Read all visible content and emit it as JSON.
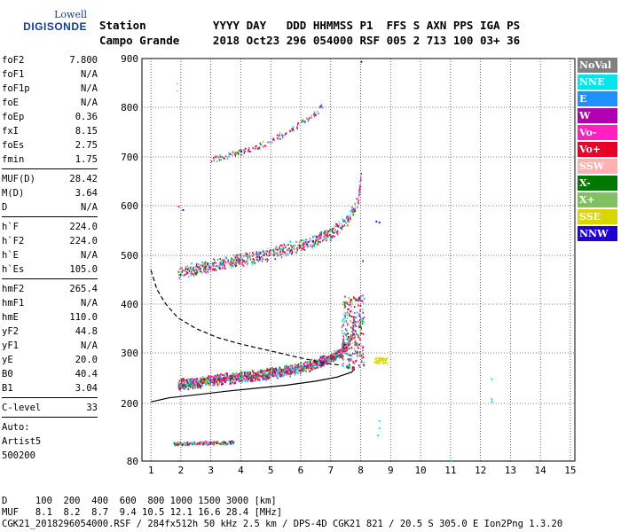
{
  "logo": {
    "line1": "Lowell",
    "line2": "DIGISONDE"
  },
  "header": {
    "row1": "Station          YYYY DAY   DDD HHMMSS P1  FFS S AXN PPS IGA PS",
    "row2": "Campo Grande     2018 Oct23 296 054000 RSF 005 2 713 100 03+ 36"
  },
  "params": {
    "group1": [
      [
        "foF2",
        "7.800"
      ],
      [
        "foF1",
        "N/A"
      ],
      [
        "foF1p",
        "N/A"
      ],
      [
        "foE",
        "N/A"
      ],
      [
        "foEp",
        "0.36"
      ],
      [
        "fxI",
        "8.15"
      ],
      [
        "foEs",
        "2.75"
      ],
      [
        "fmin",
        "1.75"
      ]
    ],
    "group2": [
      [
        "MUF(D)",
        "28.42"
      ],
      [
        "M(D)",
        "3.64"
      ],
      [
        "D",
        "N/A"
      ]
    ],
    "group3": [
      [
        "h`F",
        "224.0"
      ],
      [
        "h`F2",
        "224.0"
      ],
      [
        "h`E",
        "N/A"
      ],
      [
        "h`Es",
        "105.0"
      ]
    ],
    "group4": [
      [
        "hmF2",
        "265.4"
      ],
      [
        "hmF1",
        "N/A"
      ],
      [
        "hmE",
        "110.0"
      ],
      [
        "yF2",
        "44.8"
      ],
      [
        "yF1",
        "N/A"
      ],
      [
        "yE",
        "20.0"
      ],
      [
        "B0",
        "40.4"
      ],
      [
        "B1",
        "3.04"
      ]
    ],
    "group5": [
      [
        "C-level",
        "33"
      ]
    ],
    "group6": [
      "Auto:",
      "Artist5",
      "500200"
    ]
  },
  "legend": [
    {
      "label": "NoVal",
      "color": "#808080"
    },
    {
      "label": "NNE",
      "color": "#00e5ee"
    },
    {
      "label": "E",
      "color": "#1e90ff"
    },
    {
      "label": "W",
      "color": "#b000b0"
    },
    {
      "label": "Vo-",
      "color": "#ff20c0"
    },
    {
      "label": "Vo+",
      "color": "#e8002a"
    },
    {
      "label": "SSW",
      "color": "#ffb0b0"
    },
    {
      "label": "X-",
      "color": "#007800"
    },
    {
      "label": "X+",
      "color": "#80c060"
    },
    {
      "label": "SSE",
      "color": "#d8d800"
    },
    {
      "label": "NNW",
      "color": "#2000d0"
    }
  ],
  "bottom": {
    "line1": "D     100  200  400  600  800 1000 1500 3000 [km]",
    "line2": "MUF   8.1  8.2  8.7  9.4 10.5 12.1 16.6 28.4 [MHz]",
    "line3": "CGK21_2018296054000.RSF / 284fx512h 50 kHz 2.5 km / DPS-4D CGK21 821 / 20.5 S 305.0 E Ion2Png 1.3.20"
  },
  "chart_data": {
    "type": "scatter",
    "title": "",
    "xlabel": "",
    "ylabel": "",
    "xlim": [
      1,
      15
    ],
    "ylim": [
      80,
      900
    ],
    "x_ticks": [
      1,
      2,
      3,
      4,
      5,
      6,
      7,
      8,
      9,
      10,
      11,
      12,
      13,
      14,
      15
    ],
    "y_ticks": [
      80,
      200,
      300,
      400,
      500,
      600,
      700,
      800,
      900
    ],
    "grid": true,
    "legend_placement": "right",
    "traces": [
      {
        "name": "F2 virtual-height trace (O)",
        "x": [
          1.9,
          2.5,
          3.0,
          3.5,
          4.0,
          4.5,
          5.0,
          5.5,
          6.0,
          6.5,
          7.0,
          7.3,
          7.5,
          7.7,
          7.8
        ],
        "y": [
          228,
          233,
          238,
          241,
          244,
          247,
          251,
          256,
          262,
          270,
          282,
          292,
          305,
          330,
          380
        ]
      },
      {
        "name": "second hop",
        "x": [
          1.9,
          2.5,
          3.0,
          3.5,
          4.0,
          4.5,
          5.0,
          5.5,
          6.0,
          6.5,
          7.0,
          7.4,
          7.7,
          7.9,
          8.0
        ],
        "y": [
          455,
          463,
          470,
          476,
          482,
          488,
          495,
          503,
          512,
          522,
          537,
          555,
          575,
          605,
          650
        ]
      },
      {
        "name": "third hop",
        "x": [
          3.0,
          3.5,
          4.0,
          4.5,
          5.0,
          5.5,
          6.0,
          6.5,
          6.7
        ],
        "y": [
          688,
          697,
          705,
          715,
          728,
          745,
          763,
          783,
          800
        ]
      },
      {
        "name": "sporadic E",
        "x": [
          1.75,
          2.0,
          2.5,
          3.0,
          3.5,
          3.8
        ],
        "y": [
          113,
          113,
          114,
          114,
          115,
          116
        ]
      }
    ],
    "profile_solid": {
      "x": [
        1.0,
        1.6,
        2.5,
        3.5,
        4.5,
        5.5,
        6.5,
        7.2,
        7.7,
        7.8
      ],
      "y": [
        203,
        211,
        217,
        224,
        230,
        236,
        244,
        252,
        262,
        268
      ]
    },
    "profile_dashed": {
      "x": [
        1.0,
        1.2,
        1.5,
        1.9,
        2.5,
        3.2,
        4.0,
        5.0,
        6.0,
        6.8,
        7.3
      ],
      "y": [
        470,
        430,
        400,
        372,
        350,
        332,
        318,
        304,
        290,
        280,
        276
      ]
    }
  }
}
